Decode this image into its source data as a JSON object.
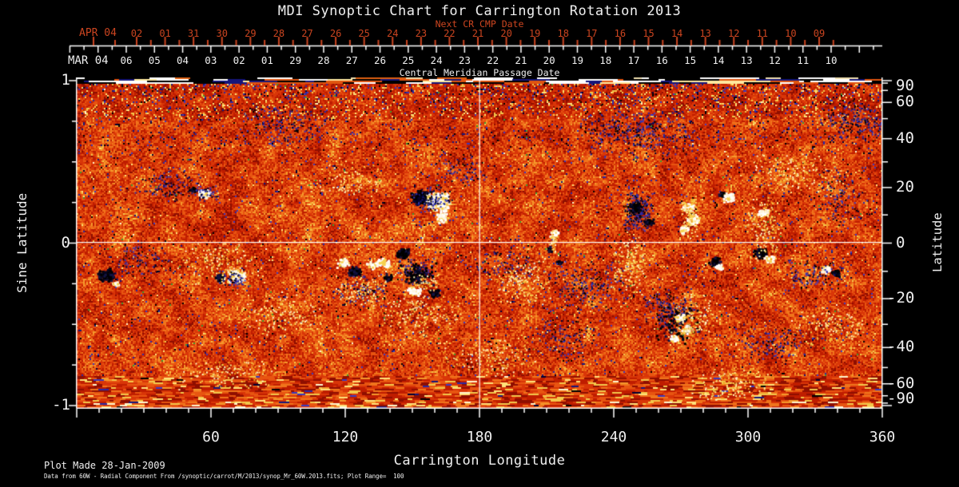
{
  "title": "MDI Synoptic Chart for Carrington Rotation 2013",
  "colors": {
    "background": "#000000",
    "text": "#f0f0f0",
    "red": "#cc4520",
    "frame": "#ffffff",
    "crosshair": "#ffffff"
  },
  "top_axis_red": {
    "label": "APR 04",
    "axis_title": "Next CR CMP Date",
    "ticks": [
      "02",
      "01",
      "31",
      "30",
      "29",
      "28",
      "27",
      "26",
      "25",
      "24",
      "23",
      "22",
      "21",
      "20",
      "19",
      "18",
      "17",
      "16",
      "15",
      "14",
      "13",
      "12",
      "11",
      "10",
      "09"
    ]
  },
  "top_axis_white": {
    "label": "MAR 04",
    "axis_title": "Central Meridian Passage Date",
    "ticks": [
      "06",
      "05",
      "04",
      "03",
      "02",
      "01",
      "29",
      "28",
      "27",
      "26",
      "25",
      "24",
      "23",
      "22",
      "21",
      "20",
      "19",
      "18",
      "17",
      "16",
      "15",
      "14",
      "13",
      "12",
      "11",
      "10"
    ]
  },
  "left_axis": {
    "title": "Sine Latitude",
    "ticks": [
      "1",
      "0",
      "-1"
    ]
  },
  "right_axis": {
    "title": "Latitude",
    "ticks": [
      "90",
      "60",
      "40",
      "20",
      "0",
      "-20",
      "-40",
      "-60",
      "-90"
    ]
  },
  "bottom_axis": {
    "title": "Carrington Longitude",
    "ticks": [
      "60",
      "120",
      "180",
      "240",
      "300",
      "360"
    ]
  },
  "footer": {
    "line1": "Plot Made 28-Jan-2009",
    "line2": "Data from 60W - Radial Component From /synoptic/carrot/M/2013/synop_Mr_60W.2013.fits; Plot Range=  100"
  },
  "chart_data": {
    "type": "heatmap",
    "title": "MDI Synoptic Chart for Carrington Rotation 2013",
    "carrington_rotation": 2013,
    "xlabel": "Carrington Longitude",
    "x_range": [
      0,
      360
    ],
    "x_major_ticks": [
      60,
      120,
      180,
      240,
      300,
      360
    ],
    "x_minor_step_deg": 10,
    "ylabel_left": "Sine Latitude",
    "y_range_sine": [
      -1,
      1
    ],
    "left_major_ticks": [
      1,
      0,
      -1
    ],
    "left_minor_ticks": [
      0.75,
      0.5,
      0.25,
      -0.25,
      -0.5,
      -0.75
    ],
    "ylabel_right": "Latitude",
    "right_major_tick_lats": [
      90,
      60,
      40,
      20,
      0,
      -20,
      -40,
      -60,
      -90
    ],
    "right_minor_tick_lats": [
      80,
      70,
      50,
      30,
      10,
      -10,
      -30,
      -50,
      -70,
      -80
    ],
    "value_range_gauss": [
      -100,
      100
    ],
    "crosshair": {
      "longitude": 180,
      "sine_latitude": 0
    },
    "palette": {
      "warm_ramp": [
        "#8f0e00",
        "#bf1d00",
        "#d93608",
        "#e85511",
        "#f0751c",
        "#f59a2c",
        "#f3c84b",
        "#ffe27a",
        "#fff6cf"
      ],
      "navy": [
        "#000033",
        "#16167a",
        "#2a2aa5",
        "#000000",
        "#3a3ac0"
      ],
      "white": [
        "#ffffff",
        "#ffffff",
        "#fdf6e3",
        "#f6d14e"
      ],
      "black": [
        "#000000",
        "#000000",
        "#05051e",
        "#131342"
      ],
      "pale": [
        "#f6d14e",
        "#ffe98c",
        "#fff3c0",
        "#f0a020"
      ],
      "green_fleck": "#3a9b30"
    },
    "active_regions": {
      "units": "pixels inside plot area (1008x414, origin top-left); fields [x,y,rx,ry,polarity,density]",
      "items": [
        [
          37,
          248,
          11,
          9,
          "black",
          2.2
        ],
        [
          49,
          259,
          5,
          4,
          "white",
          2.2
        ],
        [
          146,
          141,
          5,
          4,
          "black",
          2.0
        ],
        [
          160,
          146,
          8,
          6,
          "white",
          2.4
        ],
        [
          163,
          146,
          15,
          11,
          "navy",
          0.5
        ],
        [
          180,
          252,
          7,
          6,
          "black",
          2.2
        ],
        [
          201,
          250,
          12,
          9,
          "white",
          2.4
        ],
        [
          197,
          254,
          22,
          13,
          "navy",
          0.4
        ],
        [
          334,
          233,
          9,
          6,
          "white",
          2.0
        ],
        [
          349,
          243,
          9,
          7,
          "black",
          2.2
        ],
        [
          371,
          236,
          8,
          5,
          "white",
          1.8
        ],
        [
          390,
          251,
          6,
          5,
          "black",
          1.8
        ],
        [
          358,
          268,
          38,
          22,
          "navy",
          0.22
        ],
        [
          358,
          268,
          38,
          22,
          "pale",
          0.26
        ],
        [
          431,
          151,
          13,
          10,
          "black",
          2.4
        ],
        [
          453,
          156,
          16,
          13,
          "white",
          2.6
        ],
        [
          443,
          154,
          28,
          18,
          "navy",
          0.45
        ],
        [
          458,
          175,
          8,
          9,
          "white",
          1.4
        ],
        [
          409,
          221,
          10,
          7,
          "black",
          2.3
        ],
        [
          385,
          233,
          9,
          6,
          "white",
          2.1
        ],
        [
          424,
          243,
          26,
          17,
          "navy",
          0.5
        ],
        [
          428,
          246,
          24,
          15,
          "black",
          0.45
        ],
        [
          421,
          268,
          11,
          6,
          "white",
          1.7
        ],
        [
          447,
          271,
          8,
          5,
          "black",
          1.8
        ],
        [
          438,
          257,
          20,
          12,
          "pale",
          0.4
        ],
        [
          598,
          196,
          6,
          6,
          "white",
          2.0
        ],
        [
          597,
          207,
          5,
          14,
          "pale",
          0.9
        ],
        [
          592,
          216,
          4,
          4,
          "black",
          1.7
        ],
        [
          604,
          232,
          5,
          4,
          "black",
          1.5
        ],
        [
          703,
          168,
          20,
          26,
          "navy",
          0.8
        ],
        [
          699,
          163,
          9,
          7,
          "black",
          2.0
        ],
        [
          716,
          181,
          7,
          5,
          "black",
          1.8
        ],
        [
          766,
          163,
          8,
          6,
          "white",
          2.2
        ],
        [
          772,
          179,
          8,
          7,
          "white",
          2.2
        ],
        [
          760,
          191,
          7,
          6,
          "white",
          2.0
        ],
        [
          768,
          177,
          12,
          28,
          "pale",
          0.55
        ],
        [
          808,
          148,
          5,
          4,
          "black",
          1.8
        ],
        [
          817,
          151,
          8,
          6,
          "white",
          2.3
        ],
        [
          859,
          170,
          7,
          5,
          "white",
          2.2
        ],
        [
          799,
          231,
          8,
          6,
          "black",
          2.2
        ],
        [
          805,
          238,
          6,
          4,
          "white",
          1.8
        ],
        [
          856,
          221,
          9,
          7,
          "black",
          2.3
        ],
        [
          867,
          228,
          7,
          5,
          "white",
          2.0
        ],
        [
          938,
          241,
          8,
          5,
          "white",
          2.2
        ],
        [
          950,
          245,
          6,
          5,
          "black",
          2.0
        ],
        [
          745,
          292,
          36,
          32,
          "navy",
          0.3
        ],
        [
          752,
          310,
          30,
          26,
          "black",
          0.22
        ],
        [
          756,
          301,
          7,
          5,
          "white",
          1.8
        ],
        [
          764,
          316,
          7,
          6,
          "white",
          1.8
        ],
        [
          748,
          328,
          6,
          5,
          "white",
          1.6
        ],
        [
          770,
          300,
          30,
          30,
          "pale",
          0.25
        ],
        [
          640,
          262,
          55,
          35,
          "navy",
          0.2
        ],
        [
          540,
          235,
          45,
          28,
          "navy",
          0.16
        ],
        [
          975,
          55,
          55,
          28,
          "navy",
          0.25
        ],
        [
          918,
          248,
          45,
          25,
          "navy",
          0.18
        ],
        [
          700,
          70,
          80,
          38,
          "navy",
          0.2
        ],
        [
          480,
          115,
          40,
          22,
          "navy",
          0.16
        ],
        [
          115,
          135,
          45,
          22,
          "navy",
          0.2
        ],
        [
          260,
          60,
          60,
          30,
          "navy",
          0.16
        ],
        [
          870,
          335,
          50,
          28,
          "navy",
          0.18
        ],
        [
          960,
          150,
          40,
          40,
          "navy",
          0.13
        ],
        [
          80,
          230,
          40,
          25,
          "navy",
          0.18
        ],
        [
          610,
          330,
          50,
          30,
          "navy",
          0.15
        ],
        [
          180,
          232,
          55,
          30,
          "pale",
          0.22
        ],
        [
          560,
          255,
          40,
          35,
          "pale",
          0.25
        ],
        [
          690,
          235,
          25,
          45,
          "pale",
          0.3
        ],
        [
          860,
          190,
          25,
          45,
          "pale",
          0.3
        ],
        [
          900,
          120,
          60,
          30,
          "pale",
          0.2
        ],
        [
          340,
          130,
          50,
          25,
          "pale",
          0.18
        ],
        [
          430,
          300,
          60,
          30,
          "pale",
          0.2
        ],
        [
          820,
          385,
          60,
          22,
          "pale",
          0.25
        ],
        [
          190,
          372,
          70,
          22,
          "pale",
          0.18
        ],
        [
          940,
          312,
          50,
          25,
          "pale",
          0.2
        ],
        [
          260,
          300,
          60,
          30,
          "pale",
          0.18
        ],
        [
          520,
          350,
          70,
          25,
          "pale",
          0.18
        ]
      ]
    }
  }
}
